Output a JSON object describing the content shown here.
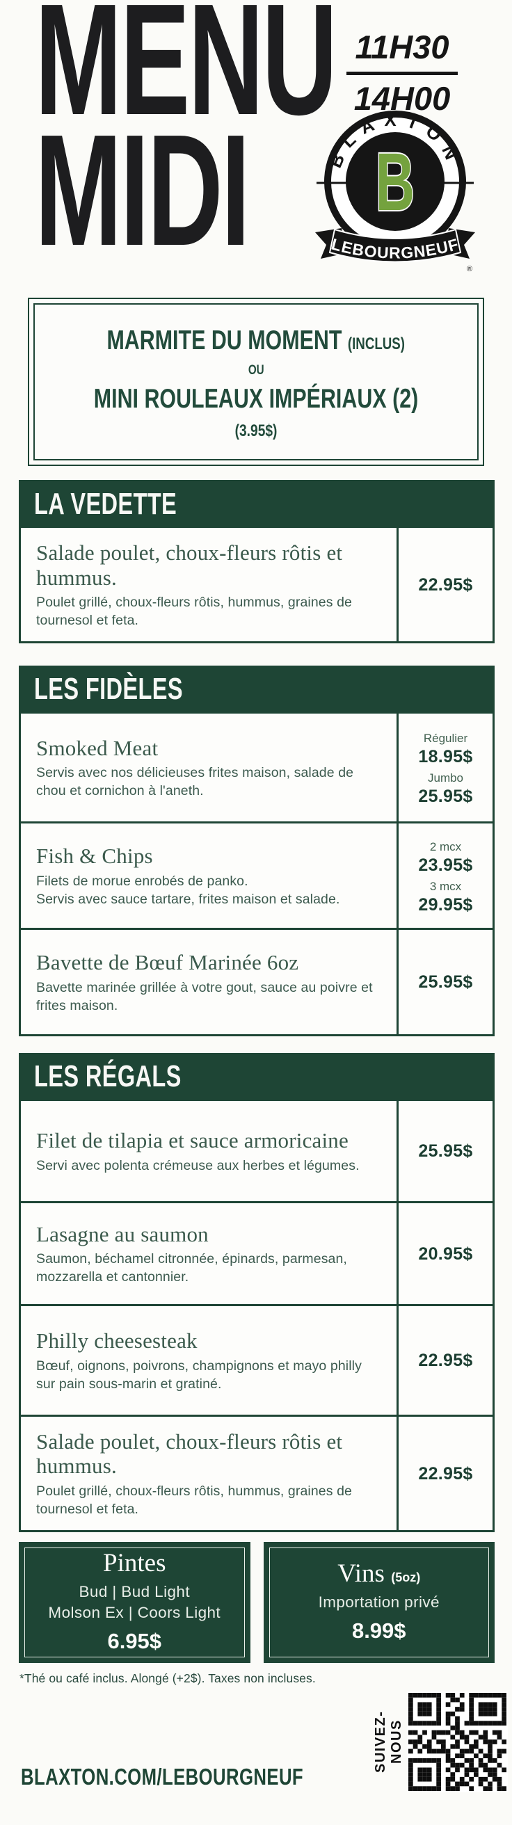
{
  "colors": {
    "green": "#1e4535",
    "logo_green": "#74a23e",
    "ink_black": "#1d1d1f",
    "paper": "#fbfbf8"
  },
  "header": {
    "title_line1": "MENU",
    "title_line2": "MIDI",
    "hours_open": "11H30",
    "hours_close": "14H00",
    "logo_brand": "BLAXTON",
    "logo_letter": "B",
    "logo_location": "LEBOURGNEUF",
    "logo_registered": "®"
  },
  "included_box": {
    "line1": "MARMITE DU MOMENT",
    "line1_note": "(INCLUS)",
    "separator": "OU",
    "line2": "MINI ROULEAUX IMPÉRIAUX (2)",
    "line2_note": "(3.95$)"
  },
  "sections": [
    {
      "title": "LA VEDETTE",
      "items": [
        {
          "title": "Salade poulet, choux-fleurs rôtis et hummus.",
          "desc": "Poulet grillé, choux-fleurs rôtis, hummus, graines de tournesol et feta.",
          "prices": [
            {
              "label": "",
              "value": "22.95$"
            }
          ]
        }
      ]
    },
    {
      "title": "LES FIDÈLES",
      "items": [
        {
          "title": "Smoked Meat",
          "desc": "Servis avec nos délicieuses frites maison, salade de chou et cornichon à l'aneth.",
          "prices": [
            {
              "label": "Régulier",
              "value": "18.95$"
            },
            {
              "label": "Jumbo",
              "value": "25.95$"
            }
          ]
        },
        {
          "title": "Fish & Chips",
          "desc": "Filets de morue enrobés de panko.",
          "desc2": "Servis avec sauce tartare, frites maison et salade.",
          "prices": [
            {
              "label": "2 mcx",
              "value": "23.95$"
            },
            {
              "label": "3 mcx",
              "value": "29.95$"
            }
          ]
        },
        {
          "title": "Bavette de Bœuf Marinée 6oz",
          "desc": "Bavette marinée grillée à votre gout, sauce au poivre et frites maison.",
          "prices": [
            {
              "label": "",
              "value": "25.95$"
            }
          ]
        }
      ]
    },
    {
      "title": "LES RÉGALS",
      "items": [
        {
          "title": "Filet de tilapia et sauce armoricaine",
          "desc": "Servi avec polenta crémeuse aux herbes et légumes.",
          "prices": [
            {
              "label": "",
              "value": "25.95$"
            }
          ]
        },
        {
          "title": "Lasagne au saumon",
          "desc": "Saumon, béchamel citronnée, épinards, parmesan, mozzarella et cantonnier.",
          "prices": [
            {
              "label": "",
              "value": "20.95$"
            }
          ]
        },
        {
          "title": "Philly cheesesteak",
          "desc": "Bœuf, oignons, poivrons, champignons et mayo philly sur pain sous-marin et gratiné.",
          "prices": [
            {
              "label": "",
              "value": "22.95$"
            }
          ]
        },
        {
          "title": "Salade poulet, choux-fleurs rôtis et hummus.",
          "desc": "Poulet grillé, choux-fleurs rôtis, hummus, graines de tournesol et feta.",
          "prices": [
            {
              "label": "",
              "value": "22.95$"
            }
          ]
        }
      ]
    }
  ],
  "drinks": [
    {
      "title": "Pintes",
      "title_note": "",
      "line1": "Bud | Bud Light",
      "line2": "Molson Ex | Coors Light",
      "price": "6.95$"
    },
    {
      "title": "Vins",
      "title_note": "(5oz)",
      "line1": "Importation privé",
      "line2": "",
      "price": "8.99$"
    }
  ],
  "footer": {
    "disclaimer": "*Thé ou café inclus. Alongé (+2$). Taxes non incluses.",
    "website": "BLAXTON.COM/LEBOURGNEUF",
    "follow": "SUIVEZ-NOUS"
  }
}
